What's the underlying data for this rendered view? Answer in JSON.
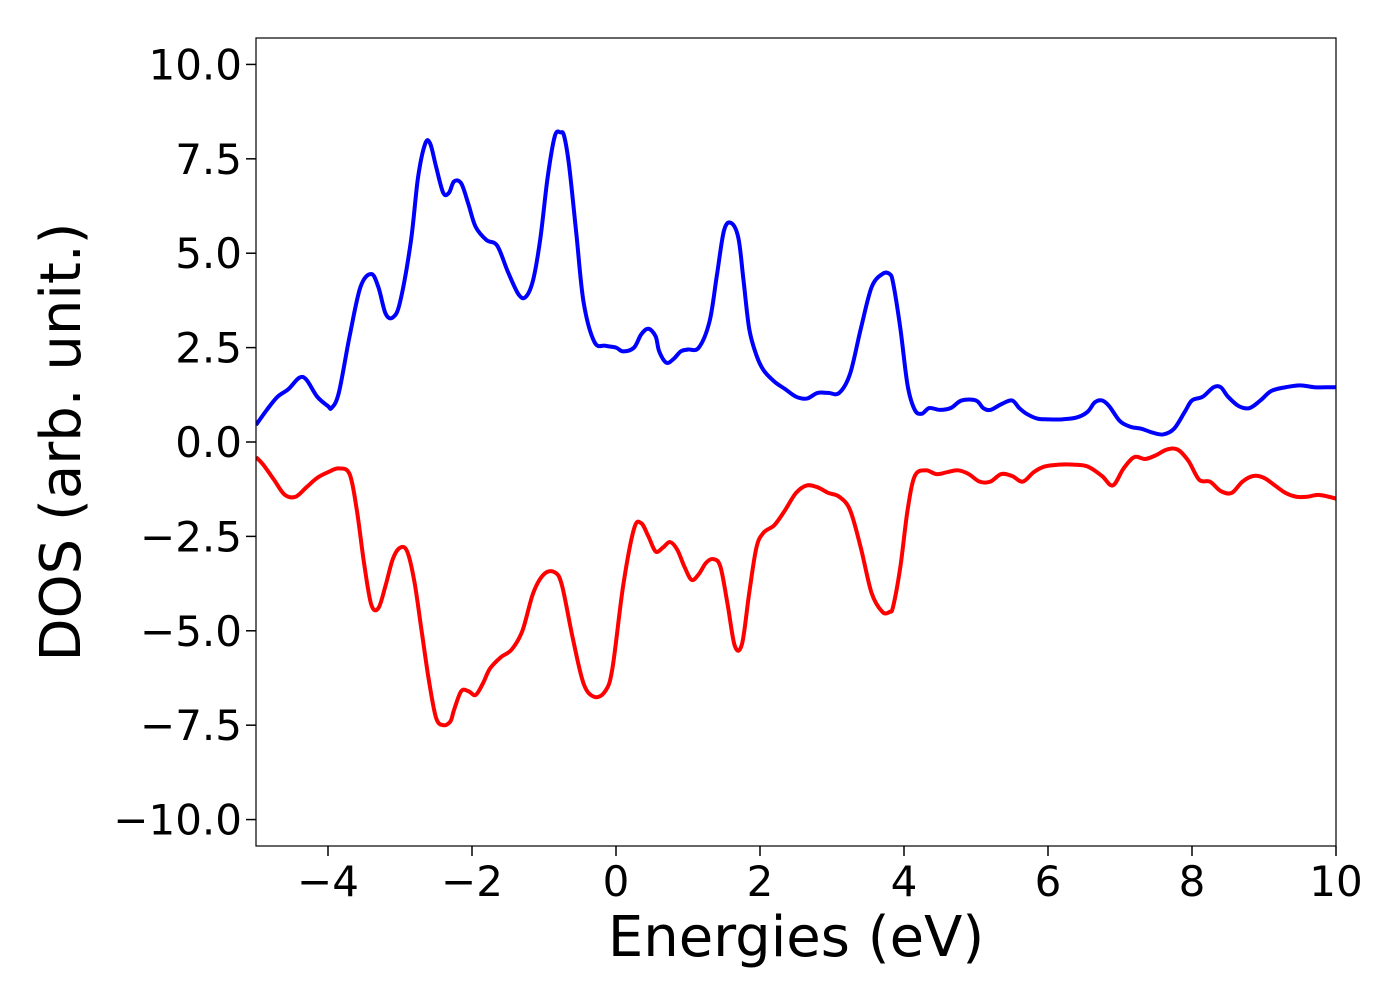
{
  "chart_data": {
    "type": "line",
    "title": "",
    "xlabel": "Energies (eV)",
    "ylabel": "DOS (arb. unit.)",
    "xlim": [
      -5,
      10
    ],
    "ylim": [
      -10.7,
      10.7
    ],
    "xticks": [
      {
        "value": -4,
        "label": "−4"
      },
      {
        "value": -2,
        "label": "−2"
      },
      {
        "value": 0,
        "label": "0"
      },
      {
        "value": 2,
        "label": "2"
      },
      {
        "value": 4,
        "label": "4"
      },
      {
        "value": 6,
        "label": "6"
      },
      {
        "value": 8,
        "label": "8"
      },
      {
        "value": 10,
        "label": "10"
      }
    ],
    "yticks": [
      {
        "value": 10.0,
        "label": "10.0"
      },
      {
        "value": 7.5,
        "label": "7.5"
      },
      {
        "value": 5.0,
        "label": "5.0"
      },
      {
        "value": 2.5,
        "label": "2.5"
      },
      {
        "value": 0.0,
        "label": "0.0"
      },
      {
        "value": -2.5,
        "label": "−2.5"
      },
      {
        "value": -5.0,
        "label": "−5.0"
      },
      {
        "value": -7.5,
        "label": "−7.5"
      },
      {
        "value": -10.0,
        "label": "−10.0"
      }
    ],
    "grid": false,
    "legend": "none",
    "series": [
      {
        "color": "#0000ff",
        "x": [
          -5.0,
          -4.85,
          -4.7,
          -4.55,
          -4.4,
          -4.3,
          -4.15,
          -4.0,
          -3.95,
          -3.85,
          -3.7,
          -3.55,
          -3.4,
          -3.3,
          -3.2,
          -3.1,
          -3.0,
          -2.85,
          -2.75,
          -2.65,
          -2.58,
          -2.5,
          -2.4,
          -2.32,
          -2.25,
          -2.15,
          -2.05,
          -1.95,
          -1.8,
          -1.65,
          -1.5,
          -1.35,
          -1.25,
          -1.15,
          -1.05,
          -0.95,
          -0.85,
          -0.77,
          -0.72,
          -0.65,
          -0.55,
          -0.45,
          -0.3,
          -0.15,
          0.0,
          0.1,
          0.25,
          0.35,
          0.45,
          0.55,
          0.6,
          0.7,
          0.8,
          0.9,
          1.0,
          1.15,
          1.3,
          1.4,
          1.5,
          1.6,
          1.7,
          1.77,
          1.85,
          1.95,
          2.05,
          2.2,
          2.35,
          2.5,
          2.65,
          2.8,
          2.95,
          3.1,
          3.25,
          3.4,
          3.55,
          3.7,
          3.8,
          3.85,
          3.95,
          4.05,
          4.15,
          4.25,
          4.35,
          4.5,
          4.65,
          4.8,
          5.0,
          5.1,
          5.2,
          5.35,
          5.5,
          5.6,
          5.7,
          5.85,
          6.0,
          6.2,
          6.4,
          6.55,
          6.65,
          6.75,
          6.85,
          7.0,
          7.15,
          7.3,
          7.45,
          7.6,
          7.75,
          7.9,
          8.0,
          8.15,
          8.3,
          8.4,
          8.5,
          8.65,
          8.8,
          8.95,
          9.1,
          9.3,
          9.5,
          9.7,
          9.85,
          10.0
        ],
        "y": [
          0.45,
          0.85,
          1.2,
          1.4,
          1.7,
          1.65,
          1.2,
          0.95,
          0.9,
          1.3,
          2.8,
          4.1,
          4.45,
          4.1,
          3.4,
          3.3,
          3.7,
          5.3,
          7.0,
          7.9,
          7.9,
          7.3,
          6.6,
          6.6,
          6.9,
          6.85,
          6.3,
          5.7,
          5.35,
          5.2,
          4.5,
          3.9,
          3.85,
          4.3,
          5.4,
          7.0,
          8.1,
          8.2,
          8.1,
          7.3,
          5.5,
          3.7,
          2.65,
          2.55,
          2.5,
          2.4,
          2.5,
          2.85,
          3.0,
          2.8,
          2.4,
          2.1,
          2.2,
          2.4,
          2.45,
          2.5,
          3.2,
          4.4,
          5.6,
          5.8,
          5.4,
          4.3,
          3.0,
          2.3,
          1.9,
          1.6,
          1.4,
          1.2,
          1.15,
          1.3,
          1.3,
          1.3,
          1.8,
          3.0,
          4.1,
          4.45,
          4.45,
          4.2,
          3.0,
          1.5,
          0.85,
          0.75,
          0.9,
          0.85,
          0.9,
          1.1,
          1.1,
          0.9,
          0.85,
          1.0,
          1.1,
          0.9,
          0.75,
          0.62,
          0.6,
          0.6,
          0.65,
          0.8,
          1.05,
          1.1,
          0.95,
          0.55,
          0.4,
          0.35,
          0.25,
          0.2,
          0.35,
          0.8,
          1.1,
          1.2,
          1.45,
          1.45,
          1.2,
          0.95,
          0.9,
          1.1,
          1.35,
          1.45,
          1.5,
          1.45,
          1.45,
          1.45
        ]
      },
      {
        "color": "#ff0000",
        "x": [
          -5.0,
          -4.9,
          -4.75,
          -4.6,
          -4.45,
          -4.3,
          -4.15,
          -4.0,
          -3.85,
          -3.7,
          -3.6,
          -3.5,
          -3.4,
          -3.3,
          -3.2,
          -3.1,
          -3.0,
          -2.9,
          -2.8,
          -2.7,
          -2.6,
          -2.5,
          -2.4,
          -2.3,
          -2.25,
          -2.15,
          -2.05,
          -1.95,
          -1.85,
          -1.75,
          -1.6,
          -1.45,
          -1.3,
          -1.15,
          -1.0,
          -0.85,
          -0.75,
          -0.6,
          -0.45,
          -0.3,
          -0.15,
          -0.05,
          0.1,
          0.25,
          0.35,
          0.45,
          0.55,
          0.65,
          0.75,
          0.85,
          0.95,
          1.05,
          1.15,
          1.25,
          1.35,
          1.45,
          1.55,
          1.65,
          1.75,
          1.85,
          1.95,
          2.05,
          2.2,
          2.35,
          2.5,
          2.65,
          2.8,
          2.95,
          3.1,
          3.25,
          3.4,
          3.55,
          3.7,
          3.8,
          3.85,
          3.95,
          4.05,
          4.15,
          4.3,
          4.45,
          4.6,
          4.75,
          4.9,
          5.05,
          5.2,
          5.35,
          5.5,
          5.65,
          5.8,
          5.95,
          6.15,
          6.35,
          6.55,
          6.75,
          6.9,
          7.05,
          7.2,
          7.35,
          7.5,
          7.65,
          7.8,
          7.95,
          8.1,
          8.25,
          8.4,
          8.55,
          8.7,
          8.85,
          9.0,
          9.15,
          9.3,
          9.45,
          9.6,
          9.75,
          9.9,
          10.0
        ],
        "y": [
          -0.4,
          -0.6,
          -1.0,
          -1.4,
          -1.45,
          -1.2,
          -0.95,
          -0.8,
          -0.7,
          -0.85,
          -1.8,
          -3.2,
          -4.3,
          -4.4,
          -3.8,
          -3.1,
          -2.8,
          -2.9,
          -3.7,
          -5.0,
          -6.3,
          -7.3,
          -7.5,
          -7.4,
          -7.1,
          -6.6,
          -6.6,
          -6.7,
          -6.4,
          -6.0,
          -5.7,
          -5.5,
          -5.0,
          -4.0,
          -3.5,
          -3.45,
          -3.8,
          -5.2,
          -6.4,
          -6.75,
          -6.6,
          -6.0,
          -3.8,
          -2.3,
          -2.15,
          -2.5,
          -2.9,
          -2.8,
          -2.65,
          -2.85,
          -3.3,
          -3.65,
          -3.5,
          -3.2,
          -3.1,
          -3.3,
          -4.3,
          -5.4,
          -5.35,
          -4.0,
          -2.8,
          -2.4,
          -2.2,
          -1.8,
          -1.35,
          -1.15,
          -1.2,
          -1.35,
          -1.45,
          -1.8,
          -2.8,
          -4.0,
          -4.5,
          -4.5,
          -4.35,
          -3.3,
          -1.8,
          -0.9,
          -0.75,
          -0.85,
          -0.8,
          -0.75,
          -0.85,
          -1.05,
          -1.05,
          -0.85,
          -0.9,
          -1.05,
          -0.8,
          -0.65,
          -0.6,
          -0.6,
          -0.65,
          -0.9,
          -1.15,
          -0.7,
          -0.4,
          -0.45,
          -0.35,
          -0.2,
          -0.2,
          -0.5,
          -1.0,
          -1.05,
          -1.3,
          -1.35,
          -1.05,
          -0.9,
          -0.95,
          -1.15,
          -1.35,
          -1.45,
          -1.45,
          -1.4,
          -1.45,
          -1.5
        ]
      }
    ]
  }
}
